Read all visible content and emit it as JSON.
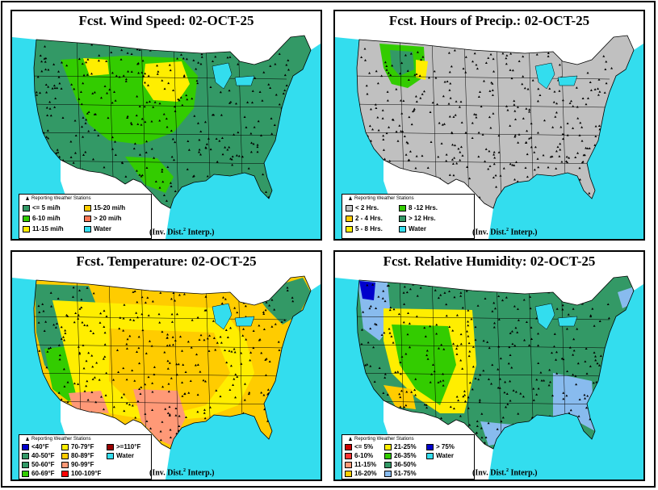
{
  "panels": [
    {
      "title": "Fcst. Wind Speed:    02-OCT-25",
      "stations_label": "Reporting Weather Stations",
      "interp_text": "(Inv. Dist.",
      "interp_sup": "2",
      "interp_tail": " Interp.)",
      "base_color": "#339966",
      "legend": [
        {
          "label": "<= 5 mi/h",
          "color": "#339966"
        },
        {
          "label": "6-10 mi/h",
          "color": "#33cc00"
        },
        {
          "label": "11-15 mi/h",
          "color": "#ffee00"
        },
        {
          "label": "15-20 mi/h",
          "color": "#ffcc00"
        },
        {
          "label": "> 20 mi/h",
          "color": "#ff7755"
        },
        {
          "label": "Water",
          "color": "#33ddee"
        }
      ]
    },
    {
      "title": "Fcst. Hours of Precip.:    02-OCT-25",
      "stations_label": "Reporting Weather Stations",
      "interp_text": "(Inv. Dist.",
      "interp_sup": "2",
      "interp_tail": " Interp.)",
      "base_color": "#c0c0c0",
      "legend": [
        {
          "label": "< 2 Hrs.",
          "color": "#c0c0c0"
        },
        {
          "label": "2 - 4 Hrs.",
          "color": "#ffcc00"
        },
        {
          "label": "5 - 8 Hrs.",
          "color": "#ffee00"
        },
        {
          "label": "8 -12 Hrs.",
          "color": "#33cc00"
        },
        {
          "label": "> 12 Hrs.",
          "color": "#339966"
        },
        {
          "label": "Water",
          "color": "#33ddee"
        }
      ]
    },
    {
      "title": "Fcst. Temperature:    02-OCT-25",
      "stations_label": "Reporting Weather Stations",
      "interp_text": "(Inv. Dist.",
      "interp_sup": "2",
      "interp_tail": " Interp.)",
      "base_color": "#ffcc00",
      "legend": [
        {
          "label": "<40°F",
          "color": "#0000cc"
        },
        {
          "label": "40-50°F",
          "color": "#339966"
        },
        {
          "label": "50-60°F",
          "color": "#339966"
        },
        {
          "label": "60-69°F",
          "color": "#33cc00"
        },
        {
          "label": "70-79°F",
          "color": "#ffee00"
        },
        {
          "label": "80-89°F",
          "color": "#ffcc00"
        },
        {
          "label": "90-99°F",
          "color": "#ff9977"
        },
        {
          "label": "100-109°F",
          "color": "#ff0000"
        },
        {
          "label": ">=110°F",
          "color": "#990000"
        },
        {
          "label": "Water",
          "color": "#33ddee"
        }
      ]
    },
    {
      "title": "Fcst. Relative Humidity:    02-OCT-25",
      "stations_label": "Reporting Weather Stations",
      "interp_text": "(Inv. Dist.",
      "interp_sup": "2",
      "interp_tail": " Interp.)",
      "base_color": "#339966",
      "legend": [
        {
          "label": "<= 5%",
          "color": "#cc0000"
        },
        {
          "label": "6-10%",
          "color": "#ff3333"
        },
        {
          "label": "11-15%",
          "color": "#ff9977"
        },
        {
          "label": "16-20%",
          "color": "#ffcc00"
        },
        {
          "label": "21-25%",
          "color": "#ffee00"
        },
        {
          "label": "26-35%",
          "color": "#33cc00"
        },
        {
          "label": "36-50%",
          "color": "#339966"
        },
        {
          "label": "51-75%",
          "color": "#88bbee"
        },
        {
          "label": "> 75%",
          "color": "#0000cc"
        },
        {
          "label": "Water",
          "color": "#33ddee"
        }
      ]
    }
  ]
}
